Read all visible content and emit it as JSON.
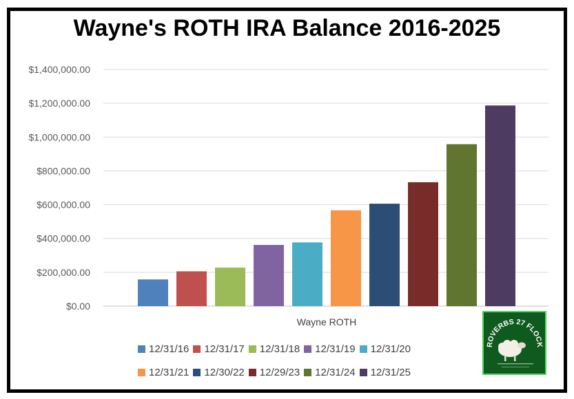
{
  "chart_data": {
    "type": "bar",
    "title": "Wayne's ROTH IRA Balance 2016-2025",
    "category_label": "Wayne ROTH",
    "ylim": [
      0,
      1400000
    ],
    "yticks": [
      "$0.00",
      "$200,000.00",
      "$400,000.00",
      "$600,000.00",
      "$800,000.00",
      "$1,000,000.00",
      "$1,200,000.00",
      "$1,400,000.00"
    ],
    "grid": true,
    "legend_position": "bottom",
    "series": [
      {
        "name": "12/31/16",
        "value": 158000,
        "color": "#4f81bd"
      },
      {
        "name": "12/31/17",
        "value": 206000,
        "color": "#c0504d"
      },
      {
        "name": "12/31/18",
        "value": 228000,
        "color": "#9bbb59"
      },
      {
        "name": "12/31/19",
        "value": 362000,
        "color": "#8064a2"
      },
      {
        "name": "12/31/20",
        "value": 377000,
        "color": "#4bacc6"
      },
      {
        "name": "12/31/21",
        "value": 567000,
        "color": "#f79646"
      },
      {
        "name": "12/30/22",
        "value": 606000,
        "color": "#2c4d75"
      },
      {
        "name": "12/29/23",
        "value": 733000,
        "color": "#772c2a"
      },
      {
        "name": "12/31/24",
        "value": 958000,
        "color": "#5f7530"
      },
      {
        "name": "12/31/25",
        "value": 1187000,
        "color": "#4d3b62"
      }
    ]
  },
  "logo": {
    "text": "PROVERBS 27 FLOCKS",
    "icon": "sheep-icon"
  }
}
